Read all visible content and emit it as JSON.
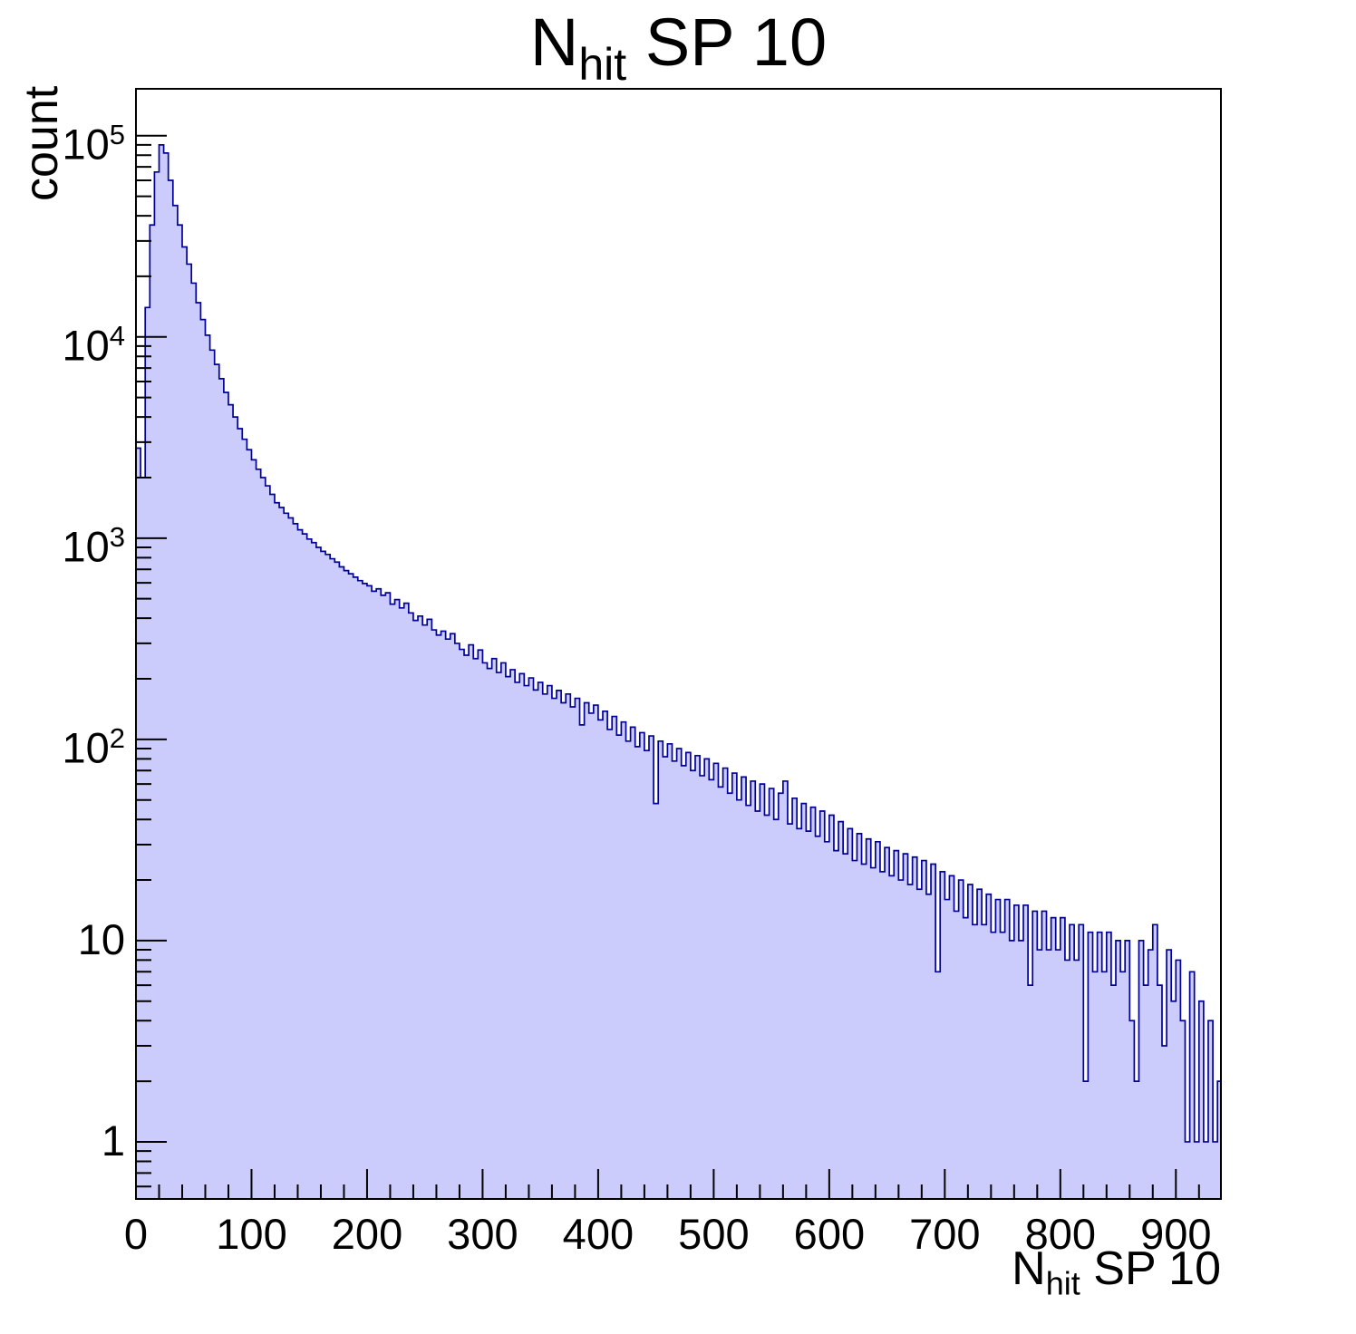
{
  "labels": {
    "title_main": "N",
    "title_sub": "hit",
    "title_rest": "SP 10",
    "xlabel_main": "N",
    "xlabel_sub": "hit",
    "xlabel_rest": "SP 10",
    "ylabel": "count"
  },
  "chart_data": {
    "type": "bar",
    "subtype": "histogram-log-y",
    "title": "N_hit SP 10",
    "xlabel": "N_hit SP 10",
    "ylabel": "count",
    "yscale": "log",
    "grid": false,
    "legend": "none",
    "xlim": [
      0,
      939
    ],
    "ylim": [
      0.52,
      171000
    ],
    "bin_start": 0,
    "bin_width": 4,
    "peak": {
      "x": 20,
      "count": 90000
    },
    "counts": [
      2800,
      2000,
      14000,
      36000,
      66000,
      90000,
      82000,
      60000,
      45000,
      36000,
      28000,
      23000,
      18500,
      14800,
      12200,
      10200,
      8600,
      7300,
      6200,
      5300,
      4600,
      4000,
      3500,
      3100,
      2750,
      2450,
      2200,
      2000,
      1820,
      1650,
      1500,
      1420,
      1330,
      1260,
      1180,
      1100,
      1050,
      990,
      950,
      900,
      860,
      830,
      790,
      760,
      720,
      690,
      665,
      640,
      615,
      595,
      580,
      545,
      560,
      520,
      535,
      470,
      495,
      450,
      475,
      425,
      390,
      410,
      370,
      395,
      350,
      330,
      345,
      315,
      335,
      300,
      280,
      262,
      295,
      252,
      278,
      240,
      225,
      252,
      215,
      240,
      205,
      222,
      192,
      212,
      185,
      202,
      176,
      192,
      168,
      185,
      160,
      175,
      152,
      168,
      145,
      160,
      118,
      152,
      135,
      148,
      125,
      138,
      112,
      130,
      105,
      122,
      98,
      115,
      92,
      108,
      88,
      104,
      48,
      98,
      82,
      95,
      78,
      90,
      74,
      86,
      70,
      83,
      66,
      80,
      63,
      76,
      58,
      72,
      54,
      68,
      50,
      65,
      47,
      62,
      44,
      60,
      42,
      57,
      40,
      54,
      62,
      38,
      51,
      36,
      48,
      35,
      46,
      33,
      44,
      31,
      42,
      28,
      39,
      27,
      36,
      25,
      34,
      24,
      32,
      23,
      31,
      22,
      29,
      21,
      28,
      20,
      27,
      19,
      26,
      18,
      25,
      17,
      24,
      7,
      22,
      16,
      21,
      14,
      20,
      13,
      19,
      12,
      18,
      12,
      17,
      11,
      16,
      11,
      16,
      10,
      15,
      10,
      15,
      6,
      14,
      9,
      14,
      9,
      13,
      9,
      13,
      8,
      12,
      8,
      12,
      2,
      11,
      7,
      11,
      7,
      11,
      6,
      10,
      7,
      10,
      4,
      2,
      10,
      6,
      9,
      12,
      6,
      3,
      9,
      5,
      8,
      4,
      1,
      7,
      1,
      5,
      1,
      4,
      1,
      2
    ],
    "x_major_ticks": [
      0,
      100,
      200,
      300,
      400,
      500,
      600,
      700,
      800,
      900
    ],
    "x_minor_step": 20,
    "y_major_ticks": [
      1,
      10,
      100,
      1000,
      10000,
      100000
    ],
    "y_tick_labels": [
      {
        "base": "1",
        "exp": ""
      },
      {
        "base": "10",
        "exp": ""
      },
      {
        "base": "10",
        "exp": "2"
      },
      {
        "base": "10",
        "exp": "3"
      },
      {
        "base": "10",
        "exp": "4"
      },
      {
        "base": "10",
        "exp": "5"
      }
    ],
    "colors": {
      "fill": "#ccccfc",
      "line": "#000099",
      "axis": "#000000",
      "background": "#ffffff"
    }
  }
}
